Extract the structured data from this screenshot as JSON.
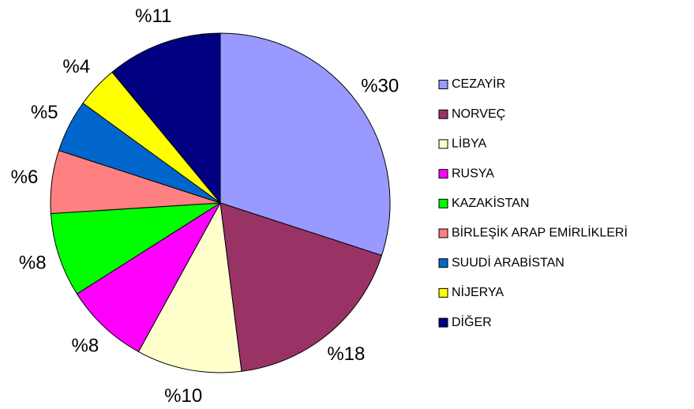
{
  "chart_data": {
    "type": "pie",
    "categories": [
      "CEZAYİR",
      "NORVEÇ",
      "LİBYA",
      "RUSYA",
      "KAZAKİSTAN",
      "BİRLEŞİK ARAP EMİRLİKLERİ",
      "SUUDİ ARABİSTAN",
      "NİJERYA",
      "DİĞER"
    ],
    "values": [
      30,
      18,
      10,
      8,
      8,
      6,
      5,
      4,
      11
    ],
    "value_labels": [
      "%30",
      "%18",
      "%10",
      "%8",
      "%8",
      "%6",
      "%5",
      "%4",
      "%11"
    ],
    "colors": [
      "#9999ff",
      "#993366",
      "#ffffcc",
      "#ff00ff",
      "#00ff00",
      "#ff8080",
      "#0066cc",
      "#ffff00",
      "#000080"
    ],
    "legend": "right"
  }
}
